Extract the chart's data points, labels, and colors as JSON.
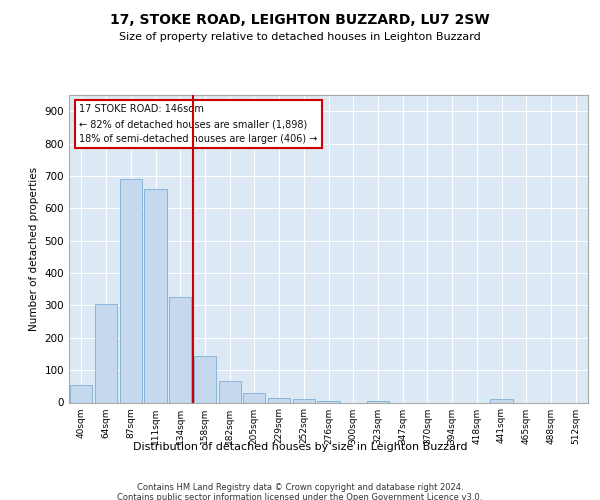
{
  "title1": "17, STOKE ROAD, LEIGHTON BUZZARD, LU7 2SW",
  "title2": "Size of property relative to detached houses in Leighton Buzzard",
  "xlabel": "Distribution of detached houses by size in Leighton Buzzard",
  "ylabel": "Number of detached properties",
  "footnote1": "Contains HM Land Registry data © Crown copyright and database right 2024.",
  "footnote2": "Contains public sector information licensed under the Open Government Licence v3.0.",
  "bar_color": "#c5d8ed",
  "bar_edge_color": "#7bafd4",
  "highlight_color": "#cc0000",
  "background_color": "#dce9f5",
  "annotation_line1": "17 STOKE ROAD: 146sqm",
  "annotation_line2": "← 82% of detached houses are smaller (1,898)",
  "annotation_line3": "18% of semi-detached houses are larger (406) →",
  "categories": [
    "40sqm",
    "64sqm",
    "87sqm",
    "111sqm",
    "134sqm",
    "158sqm",
    "182sqm",
    "205sqm",
    "229sqm",
    "252sqm",
    "276sqm",
    "300sqm",
    "323sqm",
    "347sqm",
    "370sqm",
    "394sqm",
    "418sqm",
    "441sqm",
    "465sqm",
    "488sqm",
    "512sqm"
  ],
  "values": [
    55,
    305,
    690,
    660,
    325,
    145,
    65,
    30,
    15,
    10,
    5,
    0,
    5,
    0,
    0,
    0,
    0,
    10,
    0,
    0,
    0
  ],
  "ylim": [
    0,
    950
  ],
  "yticks": [
    0,
    100,
    200,
    300,
    400,
    500,
    600,
    700,
    800,
    900
  ],
  "vline_x": 4.5,
  "grid_color": "#ffffff",
  "spine_color": "#aaaaaa"
}
